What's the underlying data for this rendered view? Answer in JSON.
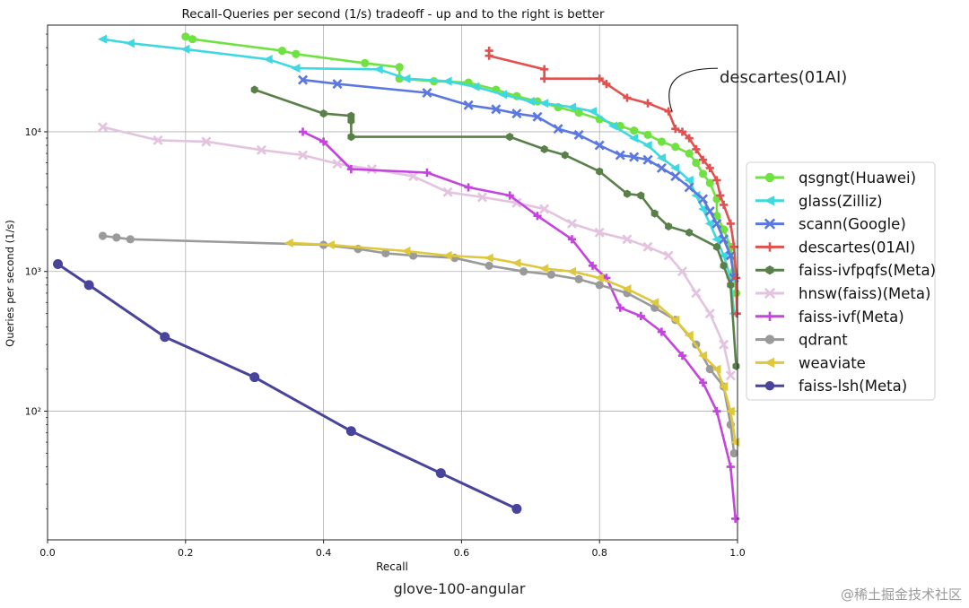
{
  "chart_data": {
    "type": "line",
    "title": "Recall-Queries per second (1/s) tradeoff - up and to the right is better",
    "xlabel": "Recall",
    "ylabel": "Queries per second (1/s)",
    "xlim": [
      0.0,
      1.0
    ],
    "ylim": [
      12,
      58000
    ],
    "yscale": "log",
    "xticks": [
      "0.0",
      "0.2",
      "0.4",
      "0.6",
      "0.8",
      "1.0"
    ],
    "yticks": [
      {
        "value": 100,
        "label": "10²"
      },
      {
        "value": 1000,
        "label": "10³"
      },
      {
        "value": 10000,
        "label": "10⁴"
      }
    ],
    "grid": true,
    "legend_position": "right",
    "annotation": {
      "text": "descartes(01AI)",
      "x": 0.905,
      "y": 14000
    },
    "series": [
      {
        "name": "qsgngt(Huawei)",
        "color": "#6fe241",
        "marker": "o",
        "x": [
          0.2,
          0.21,
          0.34,
          0.36,
          0.46,
          0.51,
          0.51,
          0.56,
          0.61,
          0.65,
          0.68,
          0.71,
          0.74,
          0.77,
          0.8,
          0.83,
          0.85,
          0.87,
          0.89,
          0.91,
          0.93,
          0.94,
          0.95,
          0.96,
          0.97,
          0.97,
          0.98,
          0.99,
          0.995,
          0.998
        ],
        "y": [
          48000,
          46000,
          38000,
          36000,
          31000,
          29000,
          24000,
          23000,
          22500,
          20000,
          18000,
          16500,
          15000,
          13700,
          12300,
          11000,
          10200,
          9500,
          8500,
          7800,
          7000,
          6000,
          5000,
          4300,
          3300,
          2500,
          2000,
          1500,
          1000,
          700
        ]
      },
      {
        "name": "glass(Zilliz)",
        "color": "#3fd8e0",
        "marker": "<",
        "x": [
          0.08,
          0.12,
          0.2,
          0.32,
          0.36,
          0.48,
          0.52,
          0.58,
          0.62,
          0.66,
          0.7,
          0.72,
          0.76,
          0.79,
          0.82,
          0.85,
          0.87,
          0.89,
          0.91,
          0.93,
          0.94,
          0.95,
          0.96,
          0.97,
          0.98,
          0.99,
          0.995
        ],
        "y": [
          46000,
          43000,
          39000,
          33000,
          28500,
          28000,
          24000,
          23000,
          21000,
          18500,
          16500,
          16000,
          15000,
          14000,
          11000,
          9000,
          8000,
          6500,
          5500,
          4500,
          3500,
          2800,
          2200,
          1700,
          1300,
          900,
          500
        ]
      },
      {
        "name": "scann(Google)",
        "color": "#5b77e0",
        "marker": "x",
        "x": [
          0.37,
          0.42,
          0.55,
          0.61,
          0.65,
          0.68,
          0.71,
          0.74,
          0.77,
          0.8,
          0.83,
          0.85,
          0.87,
          0.89,
          0.91,
          0.93,
          0.95,
          0.96,
          0.97,
          0.98,
          0.99,
          0.995
        ],
        "y": [
          23500,
          22000,
          19000,
          15500,
          14500,
          13500,
          12800,
          10500,
          9500,
          8000,
          6800,
          6600,
          6300,
          5500,
          4800,
          4000,
          3300,
          2700,
          2200,
          1700,
          1300,
          900
        ]
      },
      {
        "name": "descartes(01AI)",
        "color": "#e0514f",
        "marker": "+",
        "x": [
          0.64,
          0.64,
          0.72,
          0.72,
          0.8,
          0.81,
          0.84,
          0.87,
          0.9,
          0.91,
          0.92,
          0.93,
          0.94,
          0.95,
          0.96,
          0.97,
          0.975,
          0.98,
          0.99,
          0.995,
          0.998,
          0.999
        ],
        "y": [
          38000,
          35000,
          28000,
          24000,
          24000,
          22000,
          17500,
          16000,
          14000,
          10500,
          10000,
          9000,
          7500,
          6300,
          5500,
          4500,
          3500,
          3000,
          2200,
          1500,
          900,
          500
        ]
      },
      {
        "name": "faiss-ivfpqfs(Meta)",
        "color": "#5a8049",
        "marker": "h",
        "x": [
          0.3,
          0.4,
          0.44,
          0.44,
          0.44,
          0.67,
          0.72,
          0.75,
          0.8,
          0.84,
          0.86,
          0.88,
          0.9,
          0.93,
          0.97,
          0.98,
          0.99,
          0.998
        ],
        "y": [
          20000,
          13500,
          13000,
          12000,
          9200,
          9200,
          7500,
          6800,
          5200,
          3600,
          3500,
          2600,
          2100,
          1900,
          1500,
          1100,
          800,
          210
        ]
      },
      {
        "name": "hnsw(faiss)(Meta)",
        "color": "#e3c3df",
        "marker": "x",
        "x": [
          0.08,
          0.16,
          0.23,
          0.31,
          0.37,
          0.42,
          0.47,
          0.53,
          0.58,
          0.63,
          0.68,
          0.72,
          0.76,
          0.8,
          0.84,
          0.87,
          0.9,
          0.92,
          0.94,
          0.96,
          0.98,
          0.99
        ],
        "y": [
          10800,
          8700,
          8500,
          7400,
          6800,
          5900,
          5400,
          4800,
          3700,
          3400,
          3100,
          2800,
          2200,
          1900,
          1700,
          1500,
          1300,
          1000,
          700,
          500,
          300,
          180
        ]
      },
      {
        "name": "faiss-ivf(Meta)",
        "color": "#c444dd",
        "marker": "+",
        "x": [
          0.37,
          0.4,
          0.44,
          0.55,
          0.61,
          0.67,
          0.71,
          0.76,
          0.79,
          0.81,
          0.83,
          0.86,
          0.89,
          0.92,
          0.95,
          0.97,
          0.99,
          0.997
        ],
        "y": [
          10000,
          8500,
          5400,
          5100,
          4000,
          3500,
          2500,
          1700,
          1100,
          900,
          550,
          480,
          370,
          250,
          160,
          100,
          40,
          17
        ]
      },
      {
        "name": "qdrant",
        "color": "#9a9a9a",
        "marker": "o",
        "x": [
          0.08,
          0.1,
          0.12,
          0.4,
          0.45,
          0.49,
          0.53,
          0.59,
          0.64,
          0.69,
          0.73,
          0.77,
          0.8,
          0.84,
          0.88,
          0.91,
          0.94,
          0.96,
          0.98,
          0.99,
          0.995
        ],
        "y": [
          1800,
          1750,
          1700,
          1550,
          1450,
          1350,
          1300,
          1250,
          1100,
          1000,
          950,
          880,
          800,
          700,
          550,
          450,
          300,
          200,
          150,
          80,
          50
        ]
      },
      {
        "name": "weaviate",
        "color": "#dfc83c",
        "marker": "<",
        "x": [
          0.35,
          0.41,
          0.52,
          0.58,
          0.64,
          0.68,
          0.72,
          0.76,
          0.8,
          0.84,
          0.88,
          0.91,
          0.93,
          0.95,
          0.97,
          0.98,
          0.99,
          0.997
        ],
        "y": [
          1600,
          1550,
          1400,
          1300,
          1250,
          1150,
          1050,
          1000,
          900,
          750,
          600,
          450,
          350,
          250,
          200,
          150,
          100,
          60
        ]
      },
      {
        "name": "faiss-lsh(Meta)",
        "color": "#48449c",
        "marker": "o",
        "x": [
          0.015,
          0.06,
          0.17,
          0.3,
          0.44,
          0.57,
          0.68
        ],
        "y": [
          1130,
          800,
          340,
          175,
          72,
          36,
          20
        ]
      }
    ]
  },
  "caption": "glove-100-angular",
  "watermark": "@稀土掘金技术社区"
}
